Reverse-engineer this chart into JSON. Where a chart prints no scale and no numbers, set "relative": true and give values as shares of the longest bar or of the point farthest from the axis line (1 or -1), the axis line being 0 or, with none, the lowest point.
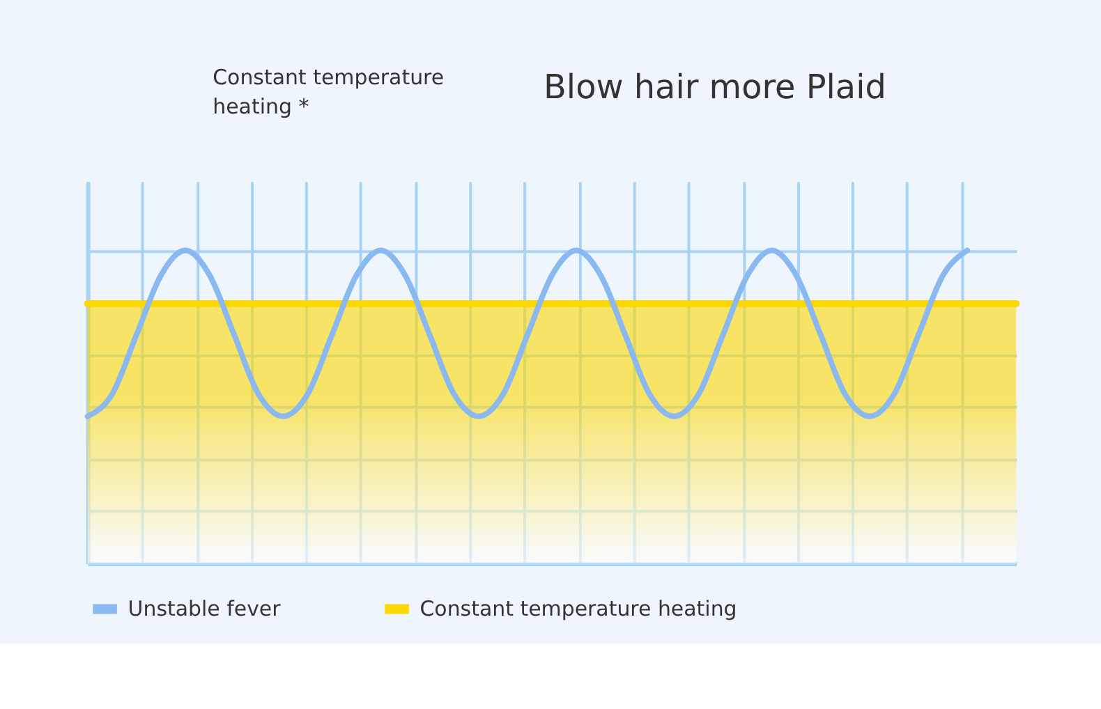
{
  "chart_data": {
    "type": "line",
    "title": "Blow hair more Plaid",
    "annotations": [
      "Constant temperature heating *"
    ],
    "relative": true,
    "grid": true,
    "tick_labels": false,
    "legend": "bottom",
    "marker": "none",
    "line_style": "solid",
    "categories": [
      null,
      null,
      null,
      null,
      null,
      null,
      null,
      null,
      null,
      null,
      null,
      null,
      null,
      null,
      null,
      null,
      null,
      null,
      null,
      null,
      null,
      null,
      null,
      null,
      null,
      null,
      null,
      null,
      null,
      null,
      null,
      null,
      null,
      null,
      null,
      null,
      null,
      null,
      null
    ],
    "series": [
      {
        "name": "Unstable fever",
        "color": "#8ab8f0",
        "values": [
          0.47,
          0.54,
          0.73,
          0.92,
          1,
          0.92,
          0.73,
          0.54,
          0.47,
          0.54,
          0.73,
          0.92,
          1,
          0.92,
          0.73,
          0.54,
          0.47,
          0.54,
          0.73,
          0.92,
          1,
          0.92,
          0.73,
          0.54,
          0.47,
          0.54,
          0.73,
          0.92,
          1,
          0.92,
          0.73,
          0.54,
          0.47,
          0.54,
          0.73,
          0.92,
          1,
          null,
          null
        ]
      },
      {
        "name": "Constant temperature heating",
        "color": "#fdd700",
        "type": "area",
        "values": [
          0.83,
          0.83,
          0.83,
          0.83,
          0.83,
          0.83,
          0.83,
          0.83,
          0.83,
          0.83,
          0.83,
          0.83,
          0.83,
          0.83,
          0.83,
          0.83,
          0.83,
          0.83,
          0.83,
          0.83,
          0.83,
          0.83,
          0.83,
          0.83,
          0.83,
          0.83,
          0.83,
          0.83,
          0.83,
          0.83,
          0.83,
          0.83,
          0.83,
          0.83,
          0.83,
          0.83,
          0.83,
          0.83,
          0.83
        ]
      }
    ]
  }
}
